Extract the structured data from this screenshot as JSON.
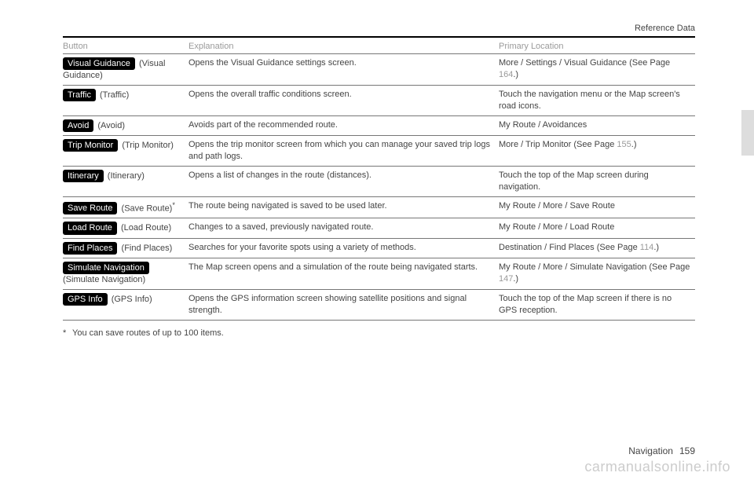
{
  "header": {
    "section": "Reference Data"
  },
  "columns": {
    "button": "Button",
    "explanation": "Explanation",
    "location": "Primary Location"
  },
  "rows": [
    {
      "btn": "Visual Guidance",
      "paren": " (Visual Guidance)",
      "exp": "Opens the Visual Guidance settings screen.",
      "loc_pre": "More / Settings / Visual Guidance (See Page ",
      "loc_ref": "164",
      "loc_post": ".)"
    },
    {
      "btn": "Traffic",
      "paren": " (Traffic)",
      "exp": "Opens the overall traffic conditions screen.",
      "loc_pre": "Touch the navigation menu or the Map screen's road icons.",
      "loc_ref": "",
      "loc_post": ""
    },
    {
      "btn": "Avoid",
      "paren": " (Avoid)",
      "exp": "Avoids part of the recommended route.",
      "loc_pre": "My Route / Avoidances",
      "loc_ref": "",
      "loc_post": ""
    },
    {
      "btn": "Trip Monitor",
      "paren": " (Trip Monitor)",
      "exp": "Opens the trip monitor screen from which you can manage your saved trip logs and path logs.",
      "loc_pre": "More / Trip Monitor (See Page ",
      "loc_ref": "155",
      "loc_post": ".)"
    },
    {
      "btn": "Itinerary",
      "paren": " (Itinerary)",
      "exp": "Opens a list of changes in the route (distances).",
      "loc_pre": "Touch the top of the Map screen during navigation.",
      "loc_ref": "",
      "loc_post": ""
    },
    {
      "btn": "Save Route",
      "paren": " (Save Route)",
      "star": "*",
      "exp": "The route being navigated is saved to be used later.",
      "loc_pre": "My Route / More / Save Route",
      "loc_ref": "",
      "loc_post": ""
    },
    {
      "btn": "Load Route",
      "paren": " (Load Route)",
      "exp": "Changes to a saved, previously navigated route.",
      "loc_pre": "My Route / More / Load Route",
      "loc_ref": "",
      "loc_post": ""
    },
    {
      "btn": "Find Places",
      "paren": " (Find Places)",
      "exp": "Searches for your favorite spots using a variety of methods.",
      "loc_pre": "Destination / Find Places (See Page ",
      "loc_ref": "114",
      "loc_post": ".)"
    },
    {
      "btn": "Simulate Navigation",
      "paren_below": "(Simulate Navigation)",
      "exp": "The Map screen opens and a simulation of the route being navigated starts.",
      "loc_pre": "My Route / More / Simulate Navigation (See Page ",
      "loc_ref": "147",
      "loc_post": ".)"
    },
    {
      "btn": "GPS Info",
      "paren": " (GPS Info)",
      "exp": "Opens the GPS information screen showing satellite positions and signal strength.",
      "loc_pre": "Touch the top of the Map screen if there is no GPS reception.",
      "loc_ref": "",
      "loc_post": ""
    }
  ],
  "footnote": {
    "mark": "*",
    "text": "You can save routes of up to 100 items."
  },
  "footer": {
    "chapter": "Navigation",
    "page": "159"
  },
  "watermark": "carmanualsonline.info"
}
